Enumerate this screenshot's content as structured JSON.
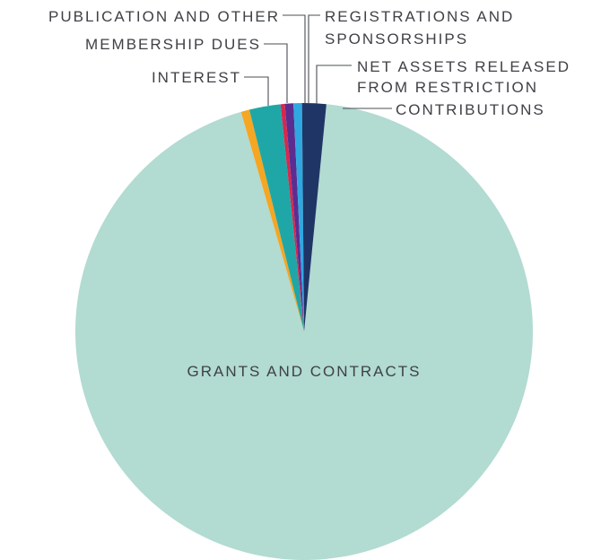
{
  "chart_data": {
    "type": "pie",
    "slices": [
      {
        "label": "GRANTS AND CONTRACTS",
        "value": 94.0,
        "color": "#b2dbd2"
      },
      {
        "label": "INTEREST",
        "value": 0.6,
        "color": "#f5a623"
      },
      {
        "label": "MEMBERSHIP DUES",
        "value": 2.2,
        "color": "#1fa7a7"
      },
      {
        "label": "PUBLICATION AND OTHER",
        "value": 0.3,
        "color": "#d6294f"
      },
      {
        "label": "REGISTRATIONS AND SPONSORSHIPS",
        "value": 0.6,
        "color": "#5c2d91"
      },
      {
        "label": "NET ASSETS RELEASED FROM RESTRICTION",
        "value": 0.6,
        "color": "#2fa8e0"
      },
      {
        "label": "CONTRIBUTIONS",
        "value": 1.7,
        "color": "#1f3566"
      }
    ],
    "annotations": {
      "grants": "GRANTS AND CONTRACTS",
      "interest": "INTEREST",
      "membership": "MEMBERSHIP DUES",
      "publication": "PUBLICATION AND OTHER",
      "registrations_line1": "REGISTRATIONS AND",
      "registrations_line2": "SPONSORSHIPS",
      "net_assets_line1": "NET ASSETS RELEASED",
      "net_assets_line2": "FROM RESTRICTION",
      "contributions": "CONTRIBUTIONS"
    }
  }
}
